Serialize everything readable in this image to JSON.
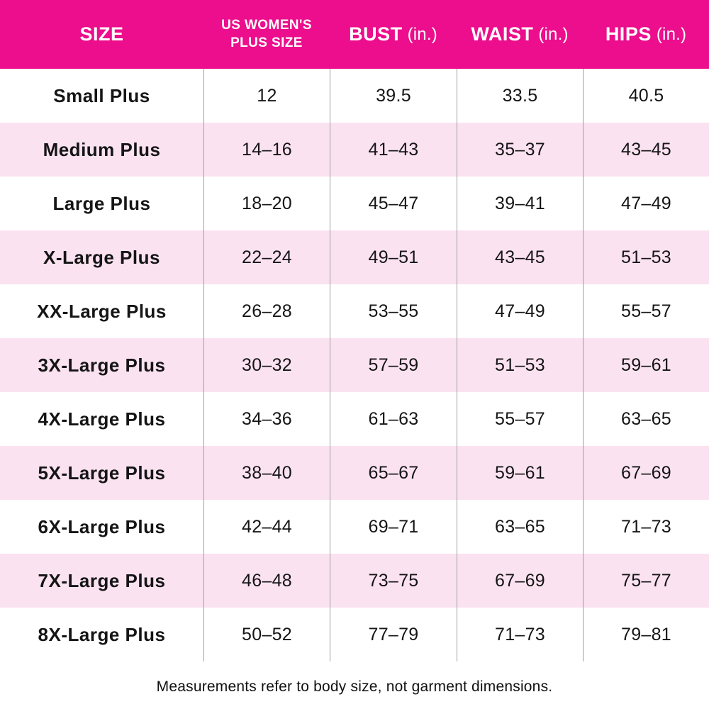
{
  "chart_data": {
    "type": "table",
    "title": "",
    "columns": [
      {
        "label": "SIZE",
        "unit": ""
      },
      {
        "label": "US WOMEN'S PLUS SIZE",
        "unit": ""
      },
      {
        "label": "BUST",
        "unit": "(in.)"
      },
      {
        "label": "WAIST",
        "unit": "(in.)"
      },
      {
        "label": "HIPS",
        "unit": "(in.)"
      }
    ],
    "rows": [
      [
        "Small Plus",
        "12",
        "39.5",
        "33.5",
        "40.5"
      ],
      [
        "Medium Plus",
        "14–16",
        "41–43",
        "35–37",
        "43–45"
      ],
      [
        "Large Plus",
        "18–20",
        "45–47",
        "39–41",
        "47–49"
      ],
      [
        "X-Large Plus",
        "22–24",
        "49–51",
        "43–45",
        "51–53"
      ],
      [
        "XX-Large Plus",
        "26–28",
        "53–55",
        "47–49",
        "55–57"
      ],
      [
        "3X-Large Plus",
        "30–32",
        "57–59",
        "51–53",
        "59–61"
      ],
      [
        "4X-Large Plus",
        "34–36",
        "61–63",
        "55–57",
        "63–65"
      ],
      [
        "5X-Large Plus",
        "38–40",
        "65–67",
        "59–61",
        "67–69"
      ],
      [
        "6X-Large Plus",
        "42–44",
        "69–71",
        "63–65",
        "71–73"
      ],
      [
        "7X-Large Plus",
        "46–48",
        "73–75",
        "67–69",
        "75–77"
      ],
      [
        "8X-Large Plus",
        "50–52",
        "77–79",
        "71–73",
        "79–81"
      ]
    ],
    "footnote": "Measurements refer to body size, not garment dimensions.",
    "colors": {
      "header_bg": "#EC0E8C",
      "row_alt_bg": "#FBE2F1",
      "row_bg": "#FFFFFF",
      "divider": "#9E9E9E",
      "header_text": "#FFFFFF",
      "body_text": "#151515"
    }
  }
}
